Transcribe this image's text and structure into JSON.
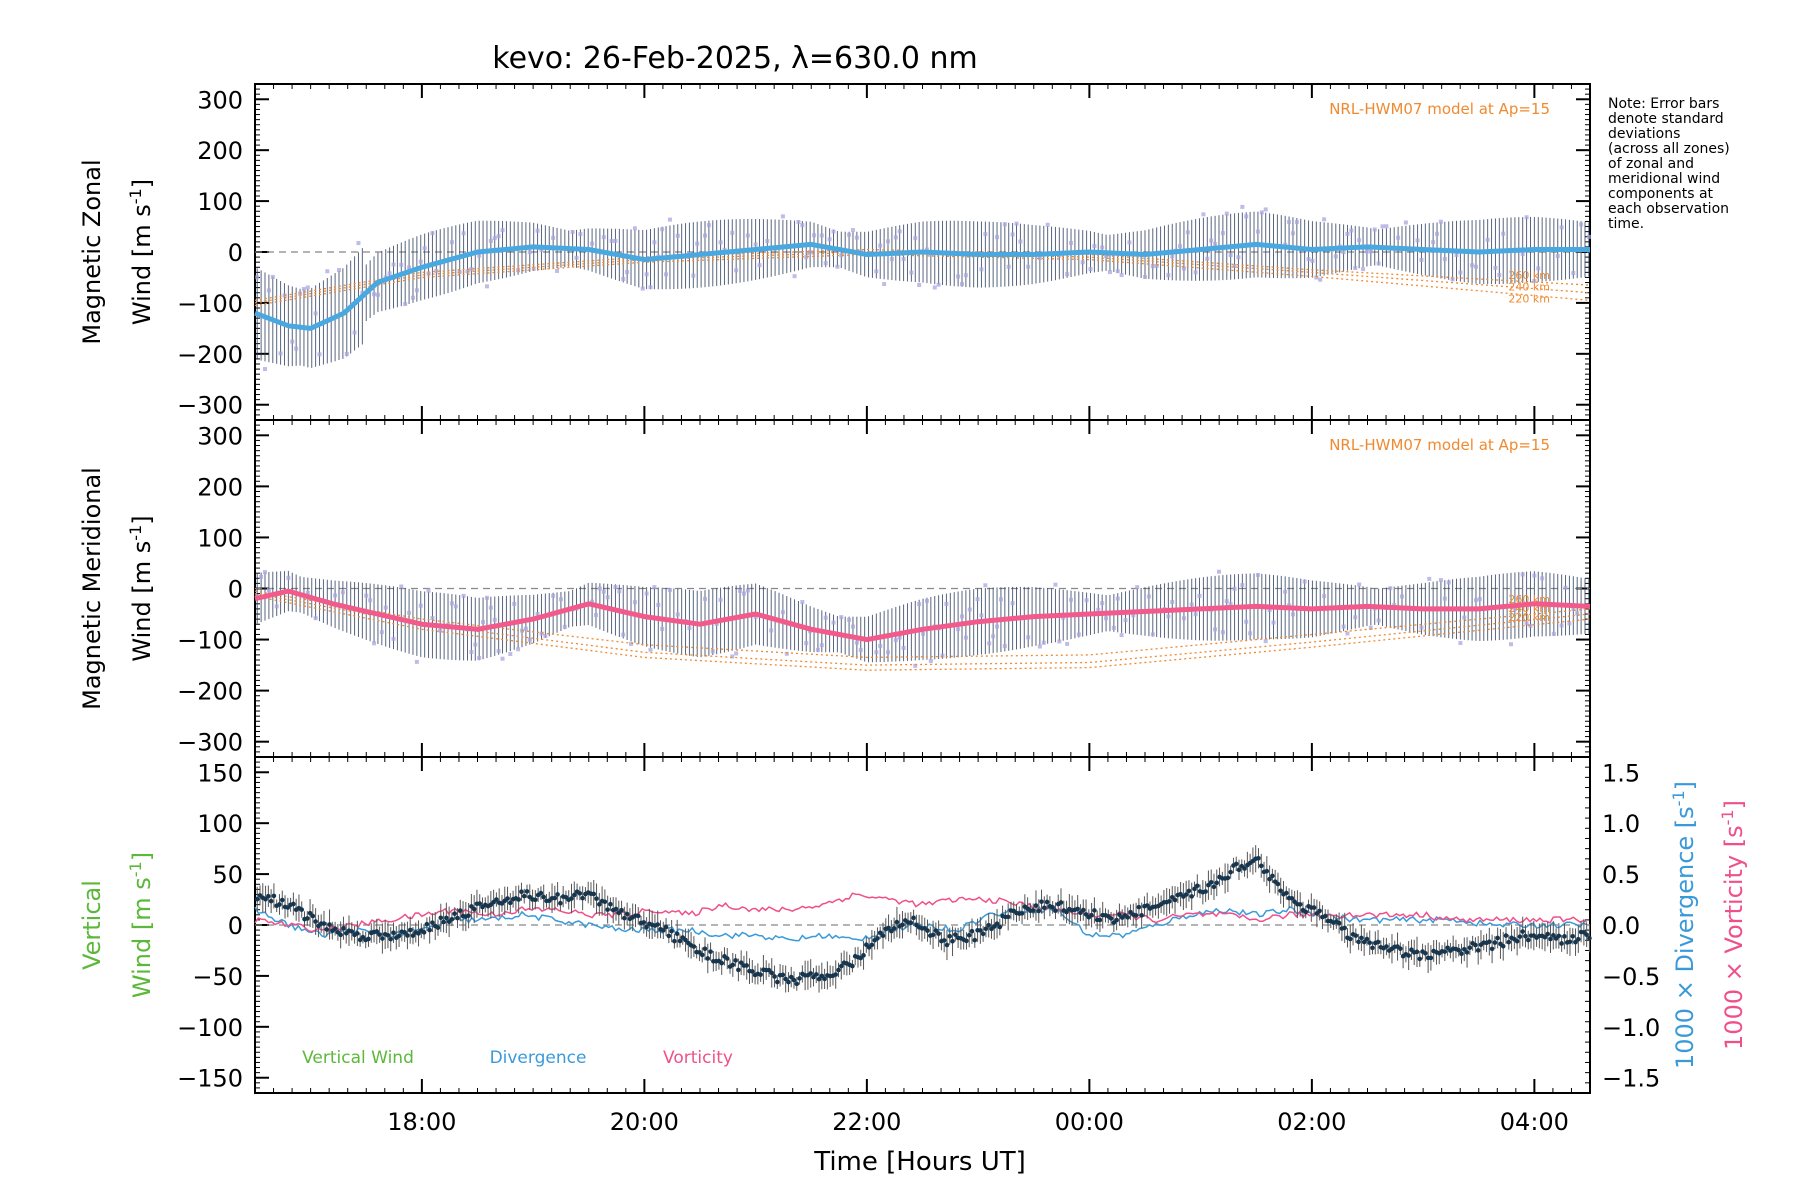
{
  "title": "kevo: 26-Feb-2025, λ=630.0 nm",
  "note": [
    "Note: Error bars",
    "denote standard",
    "deviations",
    "(across all zones)",
    "of zonal and",
    "meridional wind",
    "components at",
    "each observation",
    "time."
  ],
  "colors": {
    "zonal": "#4aa8e0",
    "meridional": "#f25a8c",
    "vertical_label": "#5cb83a",
    "divergence": "#3a9ad9",
    "vorticity": "#f0508a",
    "model": "#f08a30",
    "spread": "#a9a6e0",
    "errbar": "#2e3f5e"
  },
  "chart_data": [
    {
      "type": "line",
      "id": "zonal",
      "title": "Magnetic Zonal Wind",
      "ylabel_line1": "Magnetic Zonal",
      "ylabel_line2": "Wind [m s",
      "ylabel_sup": "-1",
      "ylabel_close": "]",
      "xlim": [
        16.5,
        28.5
      ],
      "ylim": [
        -330,
        330
      ],
      "yticks": [
        300,
        200,
        100,
        0,
        -100,
        -200,
        -300
      ],
      "ytick_labels": [
        "300",
        "200",
        "100",
        "0",
        "−100",
        "−200",
        "−300"
      ],
      "model_label": "NRL-HWM07 model at Ap=15",
      "model_alt_labels": [
        "260 km",
        "240 km",
        "220 km"
      ],
      "series": [
        {
          "name": "Zonal wind",
          "x": [
            16.5,
            16.8,
            17.0,
            17.3,
            17.6,
            18.0,
            18.5,
            19.0,
            19.5,
            20.0,
            20.5,
            21.0,
            21.5,
            22.0,
            22.5,
            23.0,
            23.5,
            24.0,
            24.5,
            25.0,
            25.5,
            26.0,
            26.5,
            27.0,
            27.5,
            28.0,
            28.5
          ],
          "y": [
            -120,
            -145,
            -150,
            -120,
            -60,
            -30,
            0,
            10,
            5,
            -15,
            -5,
            5,
            15,
            -5,
            0,
            -5,
            -5,
            0,
            -5,
            5,
            15,
            5,
            10,
            5,
            0,
            5,
            5
          ]
        },
        {
          "name": "NRL-HWM07 260 km",
          "x": [
            16.5,
            18,
            20,
            22,
            24,
            26,
            28.5
          ],
          "y": [
            -95,
            -40,
            -10,
            5,
            -5,
            -35,
            -65
          ]
        },
        {
          "name": "NRL-HWM07 240 km",
          "x": [
            16.5,
            18,
            20,
            22,
            24,
            26,
            28.5
          ],
          "y": [
            -100,
            -45,
            -15,
            0,
            -10,
            -40,
            -80
          ]
        },
        {
          "name": "NRL-HWM07 220 km",
          "x": [
            16.5,
            18,
            20,
            22,
            24,
            26,
            28.5
          ],
          "y": [
            -105,
            -50,
            -20,
            -5,
            -15,
            -48,
            -95
          ]
        }
      ]
    },
    {
      "type": "line",
      "id": "meridional",
      "title": "Magnetic Meridional Wind",
      "ylabel_line1": "Magnetic Meridional",
      "ylabel_line2": "Wind [m s",
      "ylabel_sup": "-1",
      "ylabel_close": "]",
      "xlim": [
        16.5,
        28.5
      ],
      "ylim": [
        -330,
        330
      ],
      "yticks": [
        300,
        200,
        100,
        0,
        -100,
        -200,
        -300
      ],
      "ytick_labels": [
        "300",
        "200",
        "100",
        "0",
        "−100",
        "−200",
        "−300"
      ],
      "model_label": "NRL-HWM07 model at Ap=15",
      "model_alt_labels": [
        "260 km",
        "240 km",
        "220 km"
      ],
      "series": [
        {
          "name": "Meridional wind",
          "x": [
            16.5,
            16.8,
            17.2,
            17.6,
            18.0,
            18.5,
            19.0,
            19.5,
            20.0,
            20.5,
            21.0,
            21.5,
            22.0,
            22.5,
            23.0,
            23.5,
            24.0,
            24.5,
            25.0,
            25.5,
            26.0,
            26.5,
            27.0,
            27.5,
            28.0,
            28.5
          ],
          "y": [
            -20,
            -5,
            -30,
            -50,
            -70,
            -80,
            -60,
            -30,
            -55,
            -70,
            -50,
            -80,
            -100,
            -80,
            -65,
            -55,
            -50,
            -45,
            -40,
            -35,
            -40,
            -35,
            -40,
            -40,
            -30,
            -35
          ]
        },
        {
          "name": "NRL-HWM07 260 km",
          "x": [
            16.5,
            18,
            20,
            22,
            24,
            26,
            28.5
          ],
          "y": [
            -5,
            -60,
            -110,
            -135,
            -130,
            -90,
            -40
          ]
        },
        {
          "name": "NRL-HWM07 240 km",
          "x": [
            16.5,
            18,
            20,
            22,
            24,
            26,
            28.5
          ],
          "y": [
            -10,
            -70,
            -125,
            -150,
            -145,
            -105,
            -50
          ]
        },
        {
          "name": "NRL-HWM07 220 km",
          "x": [
            16.5,
            18,
            20,
            22,
            24,
            26,
            28.5
          ],
          "y": [
            -15,
            -80,
            -135,
            -160,
            -155,
            -115,
            -60
          ]
        }
      ]
    },
    {
      "type": "line",
      "id": "vertical",
      "title": "Vertical Wind, Divergence, Vorticity",
      "ylabel_line1": "Vertical",
      "ylabel_line2": "Wind [m s",
      "ylabel_sup": "-1",
      "ylabel_close": "]",
      "xlabel": "Time [Hours UT]",
      "xlim": [
        16.5,
        28.5
      ],
      "ylim": [
        -165,
        165
      ],
      "yticks": [
        150,
        100,
        50,
        0,
        -50,
        -100,
        -150
      ],
      "ytick_labels": [
        "150",
        "100",
        "50",
        "0",
        "−50",
        "−100",
        "−150"
      ],
      "y2lim": [
        -1.65,
        1.65
      ],
      "y2ticks": [
        1.5,
        1.0,
        0.5,
        0.0,
        -0.5,
        -1.0,
        -1.5
      ],
      "y2tick_labels": [
        "1.5",
        "1.0",
        "0.5",
        "0.0",
        "−0.5",
        "−1.0",
        "−1.5"
      ],
      "y2label_div": "1000 × Divergence [s",
      "y2label_vor": "1000 × Vorticity [s",
      "y2label_sup": "-1",
      "y2label_close": "]",
      "xticks": [
        18,
        20,
        22,
        24,
        26,
        28
      ],
      "xtick_labels": [
        "18:00",
        "20:00",
        "22:00",
        "00:00",
        "02:00",
        "04:00"
      ],
      "legend": [
        "Vertical Wind",
        "Divergence",
        "Vorticity"
      ],
      "series": [
        {
          "name": "Vertical Wind",
          "axis": "left",
          "x": [
            16.5,
            16.8,
            17.1,
            17.4,
            17.7,
            18.0,
            18.3,
            18.6,
            18.9,
            19.2,
            19.5,
            19.8,
            20.1,
            20.4,
            20.7,
            21.0,
            21.3,
            21.6,
            21.9,
            22.1,
            22.4,
            22.7,
            23.0,
            23.3,
            23.6,
            23.9,
            24.2,
            24.5,
            24.8,
            25.1,
            25.3,
            25.5,
            25.8,
            26.1,
            26.4,
            26.7,
            27.0,
            27.3,
            27.6,
            27.9,
            28.2,
            28.5
          ],
          "y": [
            30,
            20,
            0,
            -10,
            -10,
            -5,
            10,
            20,
            30,
            25,
            30,
            10,
            0,
            -20,
            -35,
            -45,
            -55,
            -50,
            -35,
            -10,
            5,
            -15,
            -10,
            10,
            20,
            15,
            5,
            15,
            25,
            40,
            55,
            65,
            25,
            10,
            -15,
            -25,
            -30,
            -25,
            -20,
            -10,
            -15,
            -10
          ]
        },
        {
          "name": "Divergence",
          "axis": "right",
          "x": [
            16.5,
            16.8,
            17.1,
            17.4,
            17.7,
            18.0,
            18.3,
            18.6,
            18.9,
            19.2,
            19.5,
            19.8,
            20.1,
            20.4,
            20.7,
            21.0,
            21.3,
            21.6,
            21.9,
            22.2,
            22.5,
            22.8,
            23.1,
            23.4,
            23.7,
            24.0,
            24.3,
            24.6,
            24.9,
            25.2,
            25.5,
            25.8,
            26.1,
            26.4,
            26.7,
            27.0,
            27.3,
            27.6,
            27.9,
            28.2,
            28.5
          ],
          "y": [
            0.15,
            0.0,
            -0.1,
            -0.05,
            -0.1,
            -0.05,
            0.05,
            0.05,
            0.1,
            0.05,
            0.0,
            -0.05,
            -0.05,
            -0.05,
            -0.1,
            -0.1,
            -0.15,
            -0.1,
            -0.15,
            -0.05,
            0.0,
            -0.05,
            0.1,
            0.15,
            0.15,
            -0.1,
            -0.1,
            0.0,
            0.1,
            0.15,
            0.1,
            0.15,
            0.1,
            0.05,
            0.05,
            0.05,
            0.05,
            0.0,
            0.0,
            0.0,
            0.0
          ]
        },
        {
          "name": "Vorticity",
          "axis": "right",
          "x": [
            16.5,
            16.8,
            17.1,
            17.4,
            17.7,
            18.0,
            18.3,
            18.6,
            18.9,
            19.2,
            19.5,
            19.8,
            20.1,
            20.4,
            20.7,
            21.0,
            21.3,
            21.6,
            21.9,
            22.2,
            22.5,
            22.8,
            23.1,
            23.4,
            23.7,
            24.0,
            24.3,
            24.6,
            24.9,
            25.2,
            25.5,
            25.8,
            26.1,
            26.4,
            26.7,
            27.0,
            27.3,
            27.6,
            27.9,
            28.2,
            28.5
          ],
          "y": [
            0.05,
            0.0,
            -0.05,
            0.0,
            0.05,
            0.1,
            0.15,
            0.1,
            0.15,
            0.15,
            0.1,
            0.1,
            0.15,
            0.1,
            0.2,
            0.15,
            0.15,
            0.2,
            0.3,
            0.25,
            0.2,
            0.25,
            0.25,
            0.2,
            0.15,
            0.1,
            0.1,
            0.05,
            0.1,
            0.1,
            0.05,
            0.1,
            0.1,
            0.1,
            0.1,
            0.1,
            0.05,
            0.05,
            0.05,
            0.05,
            0.05
          ]
        }
      ]
    }
  ]
}
